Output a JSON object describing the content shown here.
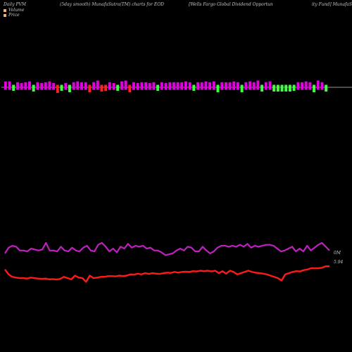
{
  "header": {
    "left": "Daily PVM",
    "center_left": "(5day smooth) MunafaSutra(TM) charts for EOD",
    "center_right": "[Wells Fargo  Global Dividend Opportun",
    "right": "ity Fund] MunafaS"
  },
  "legend": {
    "items": [
      {
        "label": "Volume",
        "color": "#f0b070"
      },
      {
        "label": "Price",
        "color": "#f0b070"
      }
    ]
  },
  "colors": {
    "background": "#000000",
    "bar_up": "#e000e0",
    "bar_down": "#40ff40",
    "bar_neutral": "#ff2020",
    "volume_line": "#c020c0",
    "price_line": "#ff1a1a",
    "baseline": "#999999"
  },
  "chart_data": [
    {
      "type": "bar",
      "name": "volume-bars",
      "baseline": 0,
      "ylim": [
        -1,
        1
      ],
      "values": [
        0.7,
        0.7,
        -0.5,
        0.6,
        0.5,
        0.6,
        0.7,
        -0.6,
        0.6,
        0.5,
        0.6,
        0.7,
        0.5,
        -0.8,
        -0.5,
        0.5,
        -0.7,
        0.6,
        0.7,
        0.6,
        0.6,
        -0.7,
        0.6,
        0.8,
        -0.6,
        -0.5,
        0.6,
        0.5,
        -0.5,
        0.7,
        0.8,
        -0.7,
        0.6,
        0.5,
        0.6,
        0.6,
        0.5,
        0.6,
        -0.5,
        0.6,
        0.5,
        0.6,
        0.6,
        0.6,
        0.6,
        0.7,
        0.6,
        -0.5,
        0.6,
        0.6,
        0.7,
        0.6,
        0.7,
        -0.7,
        0.6,
        0.6,
        0.6,
        0.7,
        0.6,
        -0.7,
        0.6,
        0.7,
        0.6,
        0.8,
        -0.6,
        0.6,
        0.7,
        -0.6,
        -0.6,
        -0.6,
        -0.6,
        -0.6,
        -0.5,
        0.6,
        0.6,
        0.7,
        0.6,
        -0.7,
        0.8,
        0.6,
        -0.6
      ],
      "signs": [
        "up",
        "up",
        "down",
        "up",
        "up",
        "up",
        "up",
        "down",
        "up",
        "up",
        "up",
        "up",
        "up",
        "neutral",
        "down",
        "up",
        "down",
        "up",
        "up",
        "up",
        "up",
        "neutral",
        "up",
        "up",
        "neutral",
        "neutral",
        "up",
        "up",
        "down",
        "up",
        "up",
        "neutral",
        "up",
        "up",
        "up",
        "up",
        "up",
        "up",
        "down",
        "up",
        "up",
        "up",
        "up",
        "up",
        "up",
        "up",
        "up",
        "down",
        "up",
        "up",
        "up",
        "up",
        "up",
        "down",
        "up",
        "up",
        "up",
        "up",
        "up",
        "down",
        "up",
        "up",
        "up",
        "up",
        "down",
        "up",
        "up",
        "down",
        "down",
        "down",
        "down",
        "down",
        "down",
        "up",
        "up",
        "up",
        "up",
        "down",
        "up",
        "up",
        "down"
      ]
    },
    {
      "type": "line",
      "name": "volume-line",
      "values": [
        0.45,
        0.75,
        0.85,
        0.8,
        0.6,
        0.6,
        0.55,
        0.7,
        0.65,
        0.6,
        0.65,
        1.0,
        0.6,
        0.6,
        0.55,
        0.8,
        0.6,
        0.55,
        0.75,
        0.6,
        0.55,
        0.75,
        0.85,
        0.6,
        0.55,
        0.9,
        1.0,
        0.8,
        0.55,
        0.7,
        0.5,
        0.8,
        0.7,
        0.95,
        0.75,
        0.85,
        0.8,
        0.85,
        0.7,
        0.75,
        0.6,
        0.6,
        0.5,
        0.35,
        0.4,
        0.45,
        0.6,
        0.7,
        0.6,
        0.8,
        0.75,
        0.55,
        0.55,
        0.8,
        0.6,
        0.45,
        0.55,
        0.75,
        0.85,
        0.85,
        0.8,
        0.85,
        0.8,
        0.9,
        0.8,
        0.95,
        0.75,
        0.85,
        0.8,
        0.85,
        0.9,
        0.9,
        0.85,
        0.7,
        0.55,
        0.6,
        0.7,
        0.8,
        0.55,
        0.7,
        0.55,
        0.85,
        0.6,
        0.75,
        0.9,
        1.0,
        0.8,
        0.6
      ]
    },
    {
      "type": "line",
      "name": "price-line",
      "values": [
        0.55,
        0.35,
        0.25,
        0.22,
        0.2,
        0.2,
        0.18,
        0.22,
        0.2,
        0.18,
        0.17,
        0.18,
        0.15,
        0.16,
        0.14,
        0.17,
        0.25,
        0.2,
        0.15,
        0.3,
        0.22,
        0.2,
        0.05,
        0.3,
        0.2,
        0.22,
        0.25,
        0.25,
        0.28,
        0.28,
        0.27,
        0.3,
        0.28,
        0.3,
        0.35,
        0.34,
        0.38,
        0.35,
        0.4,
        0.37,
        0.4,
        0.38,
        0.37,
        0.4,
        0.42,
        0.41,
        0.45,
        0.42,
        0.45,
        0.46,
        0.45,
        0.48,
        0.47,
        0.5,
        0.48,
        0.5,
        0.47,
        0.5,
        0.4,
        0.48,
        0.38,
        0.5,
        0.45,
        0.35,
        0.4,
        0.45,
        0.5,
        0.45,
        0.42,
        0.4,
        0.38,
        0.35,
        0.3,
        0.25,
        0.2,
        0.1,
        0.35,
        0.4,
        0.45,
        0.48,
        0.47,
        0.52,
        0.55,
        0.6,
        0.6,
        0.6,
        0.62,
        0.68,
        0.68
      ]
    }
  ],
  "annotations": {
    "volume_value": "0M",
    "price_value": "5.94"
  }
}
